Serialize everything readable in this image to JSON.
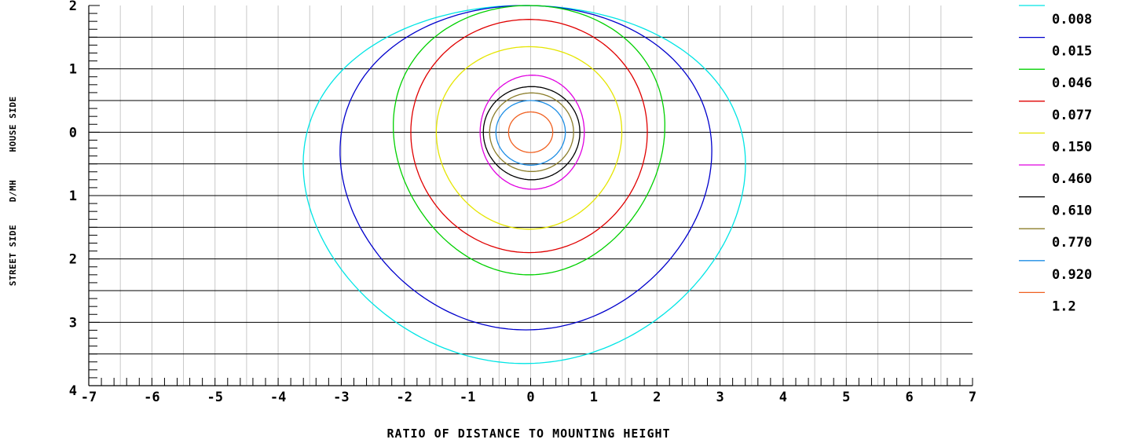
{
  "chart_data": {
    "type": "contour",
    "title": "",
    "xlabel": "RATIO OF DISTANCE TO MOUNTING HEIGHT",
    "ylabel_segments": [
      "STREET SIDE",
      "D/MH",
      "HOUSE SIDE"
    ],
    "xlim": [
      -7,
      7
    ],
    "ylim": [
      -4,
      2
    ],
    "x_ticks": [
      {
        "value": -7,
        "label": "-7"
      },
      {
        "value": -6,
        "label": "-6"
      },
      {
        "value": -5,
        "label": "-5"
      },
      {
        "value": -4,
        "label": "-4"
      },
      {
        "value": -3,
        "label": "-3"
      },
      {
        "value": -2,
        "label": "-2"
      },
      {
        "value": -1,
        "label": "-1"
      },
      {
        "value": 0,
        "label": "0"
      },
      {
        "value": 1,
        "label": "1"
      },
      {
        "value": 2,
        "label": "2"
      },
      {
        "value": 3,
        "label": "3"
      },
      {
        "value": 4,
        "label": "4"
      },
      {
        "value": 5,
        "label": "5"
      },
      {
        "value": 6,
        "label": "6"
      },
      {
        "value": 7,
        "label": "7"
      }
    ],
    "y_ticks": [
      {
        "value": 2,
        "label": "2"
      },
      {
        "value": 1,
        "label": "1"
      },
      {
        "value": 0,
        "label": "0"
      },
      {
        "value": -1,
        "label": "1"
      },
      {
        "value": -2,
        "label": "2"
      },
      {
        "value": -3,
        "label": "3"
      },
      {
        "value": -4,
        "label": "4"
      }
    ],
    "grid": true,
    "legend_position": "right",
    "series": [
      {
        "name": "0.008",
        "color": "#00e5e5",
        "xmin": -3.65,
        "xmax": 3.45,
        "ymax": 2.0,
        "ymin": -3.65,
        "y_widest": -0.5
      },
      {
        "name": "0.015",
        "color": "#0000cc",
        "xmin": -3.05,
        "xmax": 2.9,
        "ymax": 2.0,
        "ymin": -3.12,
        "y_widest": -0.3
      },
      {
        "name": "0.046",
        "color": "#00d000",
        "xmin": -2.2,
        "xmax": 2.15,
        "ymax": 2.0,
        "ymin": -2.25,
        "y_widest": 0.1
      },
      {
        "name": "0.077",
        "color": "#e00000",
        "xmin": -1.9,
        "xmax": 1.85,
        "ymax": 1.78,
        "ymin": -1.9,
        "y_widest": 0.0
      },
      {
        "name": "0.150",
        "color": "#e5e500",
        "xmin": -1.5,
        "xmax": 1.45,
        "ymax": 1.35,
        "ymin": -1.53,
        "y_widest": 0.0
      },
      {
        "name": "0.460",
        "color": "#e000e0",
        "xmin": -0.8,
        "xmax": 0.85,
        "ymax": 0.9,
        "ymin": -0.9,
        "y_widest": 0.0
      },
      {
        "name": "0.610",
        "color": "#000000",
        "xmin": -0.75,
        "xmax": 0.78,
        "ymax": 0.72,
        "ymin": -0.75,
        "y_widest": 0.0
      },
      {
        "name": "0.770",
        "color": "#8b7d2a",
        "xmin": -0.65,
        "xmax": 0.68,
        "ymax": 0.62,
        "ymin": -0.62,
        "y_widest": 0.0
      },
      {
        "name": "0.920",
        "color": "#1e8ee5",
        "xmin": -0.55,
        "xmax": 0.55,
        "ymax": 0.5,
        "ymin": -0.52,
        "y_widest": 0.0
      },
      {
        "name": "1.2",
        "color": "#f06020",
        "xmin": -0.35,
        "xmax": 0.35,
        "ymax": 0.32,
        "ymin": -0.32,
        "y_widest": 0.0
      }
    ]
  }
}
